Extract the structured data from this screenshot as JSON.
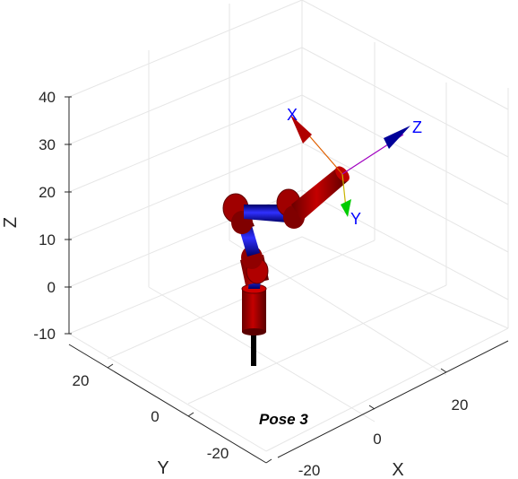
{
  "figure": {
    "title": "Pose 3",
    "axes": {
      "x_label": "X",
      "y_label": "Y",
      "z_label": "Z",
      "x_ticks": [
        "-20",
        "0",
        "20"
      ],
      "y_ticks": [
        "20",
        "0",
        "-20"
      ],
      "z_ticks": [
        "40",
        "30",
        "20",
        "10",
        "0",
        "-10"
      ]
    },
    "end_effector_frame": {
      "x_label": "X",
      "y_label": "Y",
      "z_label": "Z"
    },
    "colors": {
      "link": "#0000cc",
      "joint": "#aa0000",
      "frame_x": "#a00000",
      "frame_y": "#00cc00",
      "frame_z": "#000099",
      "grid": "#e6e6e6",
      "base": "#000000"
    }
  }
}
